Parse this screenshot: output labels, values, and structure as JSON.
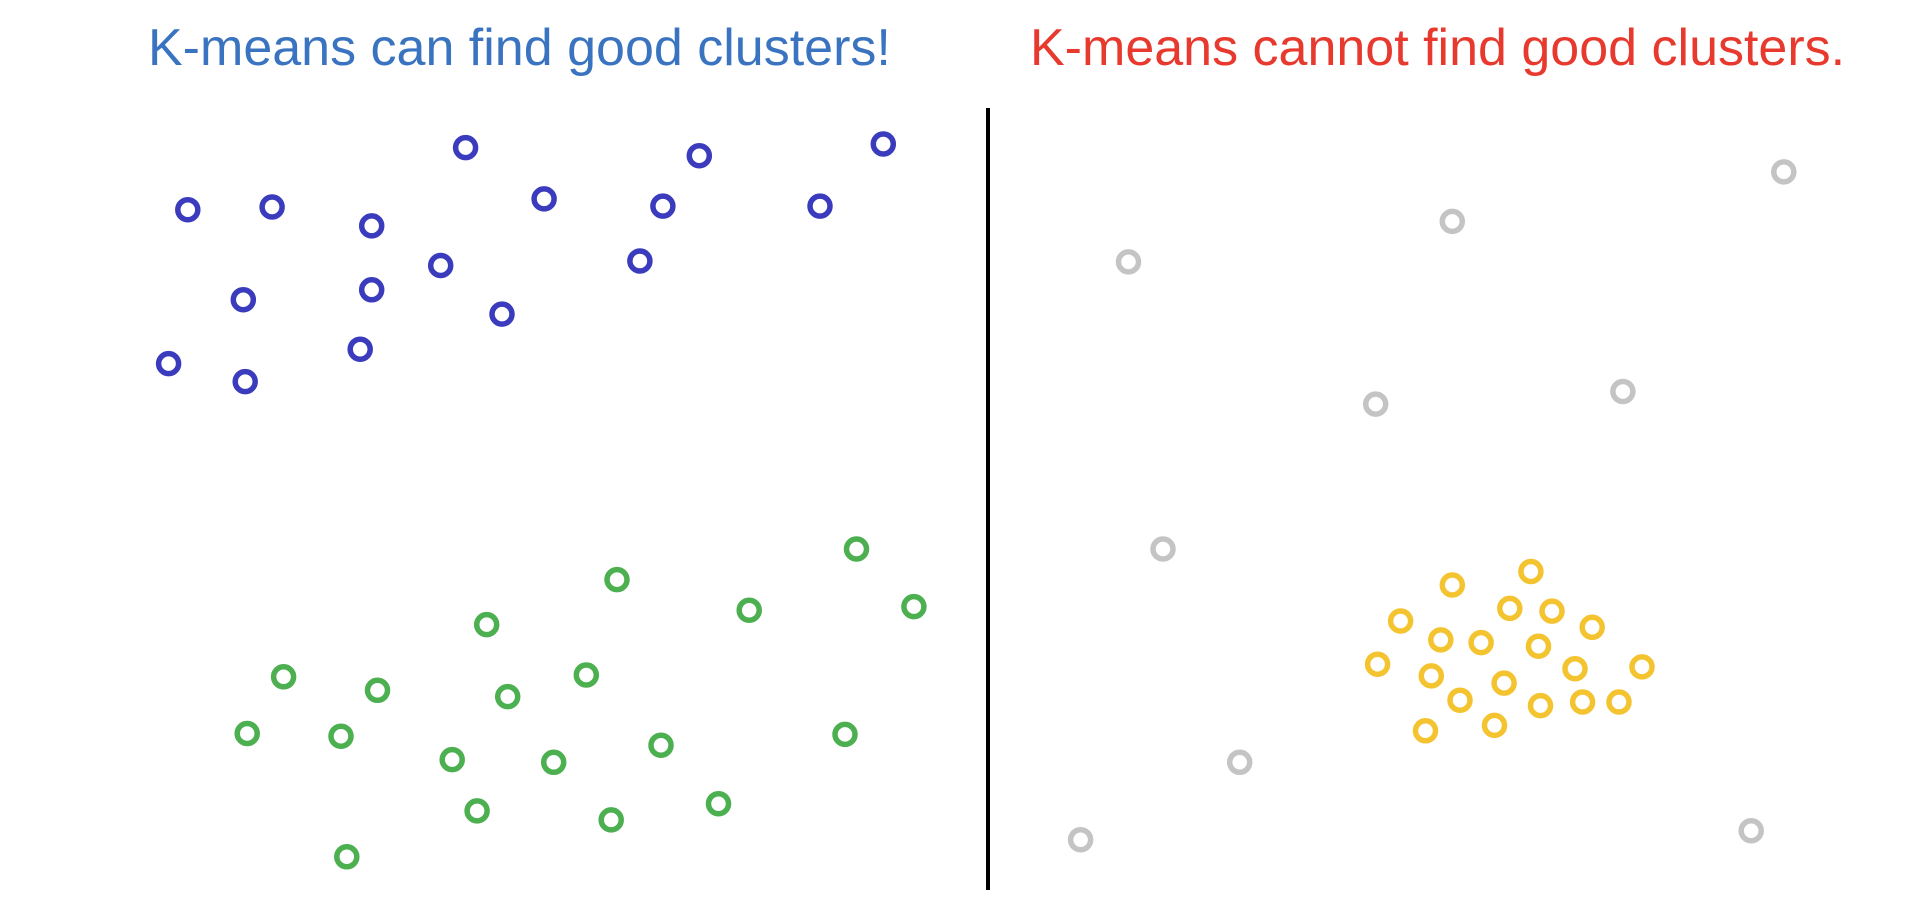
{
  "titles": {
    "left": "K-means can find good clusters!",
    "right": "K-means cannot find good clusters."
  },
  "colors": {
    "left_title": "#3a74c0",
    "right_title": "#e8392e",
    "blue_cluster": "#3b3bbd",
    "green_cluster": "#4caf50",
    "gray_points": "#c4c4c4",
    "yellow_cluster": "#f4c430",
    "divider": "#000000"
  },
  "diagram": {
    "left_panel": {
      "clusters": [
        {
          "name": "blue",
          "points": [
            [
              0.098,
              0.233
            ],
            [
              0.142,
              0.23
            ],
            [
              0.194,
              0.251
            ],
            [
              0.243,
              0.164
            ],
            [
              0.284,
              0.221
            ],
            [
              0.346,
              0.229
            ],
            [
              0.365,
              0.173
            ],
            [
              0.428,
              0.229
            ],
            [
              0.461,
              0.16
            ],
            [
              0.127,
              0.333
            ],
            [
              0.194,
              0.322
            ],
            [
              0.23,
              0.295
            ],
            [
              0.262,
              0.349
            ],
            [
              0.334,
              0.29
            ],
            [
              0.088,
              0.404
            ],
            [
              0.128,
              0.424
            ],
            [
              0.188,
              0.388
            ]
          ]
        },
        {
          "name": "green",
          "points": [
            [
              0.447,
              0.61
            ],
            [
              0.322,
              0.644
            ],
            [
              0.391,
              0.678
            ],
            [
              0.254,
              0.694
            ],
            [
              0.477,
              0.674
            ],
            [
              0.148,
              0.752
            ],
            [
              0.197,
              0.767
            ],
            [
              0.265,
              0.774
            ],
            [
              0.306,
              0.75
            ],
            [
              0.129,
              0.815
            ],
            [
              0.178,
              0.818
            ],
            [
              0.236,
              0.844
            ],
            [
              0.289,
              0.847
            ],
            [
              0.345,
              0.828
            ],
            [
              0.441,
              0.816
            ],
            [
              0.249,
              0.901
            ],
            [
              0.319,
              0.911
            ],
            [
              0.375,
              0.893
            ],
            [
              0.181,
              0.952
            ]
          ]
        }
      ]
    },
    "right_panel": {
      "clusters": [
        {
          "name": "gray",
          "points": [
            [
              0.589,
              0.291
            ],
            [
              0.758,
              0.246
            ],
            [
              0.931,
              0.191
            ],
            [
              0.718,
              0.449
            ],
            [
              0.847,
              0.435
            ],
            [
              0.607,
              0.61
            ],
            [
              0.647,
              0.847
            ],
            [
              0.564,
              0.933
            ],
            [
              0.914,
              0.923
            ]
          ]
        },
        {
          "name": "yellow",
          "points": [
            [
              0.758,
              0.65
            ],
            [
              0.799,
              0.635
            ],
            [
              0.731,
              0.69
            ],
            [
              0.788,
              0.676
            ],
            [
              0.81,
              0.679
            ],
            [
              0.752,
              0.711
            ],
            [
              0.773,
              0.714
            ],
            [
              0.803,
              0.718
            ],
            [
              0.831,
              0.697
            ],
            [
              0.719,
              0.738
            ],
            [
              0.747,
              0.751
            ],
            [
              0.785,
              0.759
            ],
            [
              0.822,
              0.743
            ],
            [
              0.857,
              0.741
            ],
            [
              0.762,
              0.778
            ],
            [
              0.804,
              0.784
            ],
            [
              0.826,
              0.78
            ],
            [
              0.845,
              0.78
            ],
            [
              0.744,
              0.812
            ],
            [
              0.78,
              0.806
            ]
          ]
        }
      ]
    }
  }
}
